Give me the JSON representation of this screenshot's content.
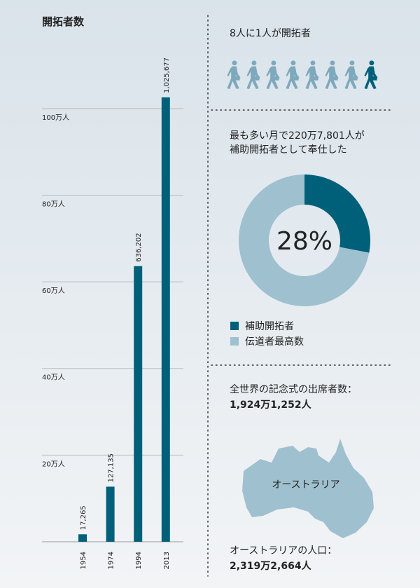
{
  "chart_data": [
    {
      "type": "bar",
      "title": "開拓者数",
      "categories": [
        "1954",
        "1974",
        "1994",
        "2013"
      ],
      "values": [
        17265,
        127135,
        636202,
        1025677
      ],
      "value_labels": [
        "17,265",
        "127,135",
        "636,202",
        "1,025,677"
      ],
      "color": "#00607a",
      "ylim": [
        0,
        1100000
      ],
      "yticks": [
        {
          "value": 200000,
          "label": "20万人"
        },
        {
          "value": 400000,
          "label": "40万人"
        },
        {
          "value": 600000,
          "label": "60万人"
        },
        {
          "value": 800000,
          "label": "80万人"
        },
        {
          "value": 1000000,
          "label": "100万人"
        }
      ],
      "grid": true
    },
    {
      "type": "pie",
      "title": [
        "最も多い月で220万7,801人が",
        "補助開拓者として奉仕した"
      ],
      "categories": [
        "補助開拓者",
        "伝道者最高数"
      ],
      "values": [
        28,
        72
      ],
      "value_labels": [
        "28%",
        null
      ],
      "colors": [
        "#00607a",
        "#9fc0cf"
      ],
      "donut": true
    }
  ],
  "pioneers": {
    "text": "8人に1人が開拓者"
  },
  "memorial": {
    "label": "全世界の記念式の出席者数：",
    "value": "1,924万1,252人"
  },
  "australia": {
    "map_label": "オーストラリア",
    "label": "オーストラリアの人口：",
    "value": "2,319万2,664人"
  }
}
